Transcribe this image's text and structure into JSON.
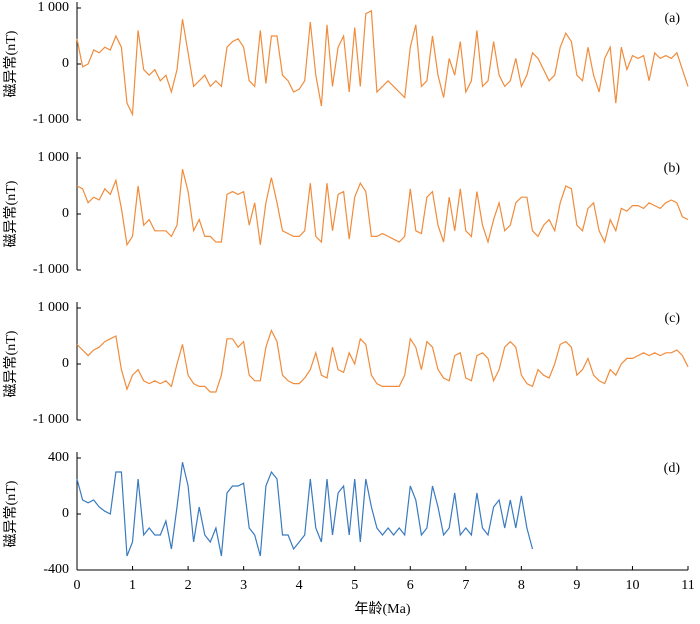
{
  "chart_data": [
    {
      "type": "line",
      "label": "(a)",
      "ylabel": "磁异常(nT)",
      "color": "#f08c3c",
      "x": [
        0,
        0.1,
        0.2,
        0.3,
        0.4,
        0.5,
        0.6,
        0.7,
        0.8,
        0.9,
        1,
        1.1,
        1.2,
        1.3,
        1.4,
        1.5,
        1.6,
        1.7,
        1.8,
        1.9,
        2,
        2.1,
        2.2,
        2.3,
        2.4,
        2.5,
        2.6,
        2.7,
        2.8,
        2.9,
        3,
        3.1,
        3.2,
        3.3,
        3.4,
        3.5,
        3.6,
        3.7,
        3.8,
        3.9,
        4,
        4.1,
        4.2,
        4.3,
        4.4,
        4.5,
        4.6,
        4.7,
        4.8,
        4.9,
        5,
        5.1,
        5.2,
        5.3,
        5.4,
        5.5,
        5.6,
        5.7,
        5.8,
        5.9,
        6,
        6.1,
        6.2,
        6.3,
        6.4,
        6.5,
        6.6,
        6.7,
        6.8,
        6.9,
        7,
        7.1,
        7.2,
        7.3,
        7.4,
        7.5,
        7.6,
        7.7,
        7.8,
        7.9,
        8,
        8.1,
        8.2,
        8.3,
        8.4,
        8.5,
        8.6,
        8.7,
        8.8,
        8.9,
        9,
        9.1,
        9.2,
        9.3,
        9.4,
        9.5,
        9.6,
        9.7,
        9.8,
        9.9,
        10,
        10.1,
        10.2,
        10.3,
        10.4,
        10.5,
        10.6,
        10.7,
        10.8,
        10.9,
        11
      ],
      "values": [
        450,
        -50,
        0,
        250,
        200,
        300,
        250,
        500,
        300,
        -700,
        -900,
        600,
        -100,
        -200,
        -100,
        -300,
        -200,
        -500,
        -100,
        800,
        200,
        -400,
        -300,
        -200,
        -400,
        -300,
        -400,
        300,
        400,
        450,
        300,
        -300,
        -400,
        600,
        -350,
        500,
        500,
        -200,
        -300,
        -500,
        -450,
        -300,
        750,
        -200,
        -750,
        700,
        -400,
        300,
        500,
        -500,
        650,
        -400,
        900,
        950,
        -500,
        -400,
        -300,
        -400,
        -500,
        -600,
        300,
        700,
        -400,
        -300,
        500,
        -200,
        -600,
        100,
        -200,
        400,
        -500,
        -300,
        600,
        -400,
        -300,
        400,
        -200,
        -400,
        -300,
        100,
        -400,
        -200,
        200,
        100,
        -100,
        -300,
        -200,
        300,
        550,
        400,
        -200,
        -300,
        300,
        -200,
        -500,
        100,
        300,
        -700,
        300,
        -100,
        150,
        100,
        150,
        -300,
        200,
        100,
        150,
        100,
        200,
        -100,
        -400
      ],
      "xlim": [
        0,
        11
      ],
      "ylim": [
        -1000,
        1000
      ],
      "yticks": [
        {
          "value": -1000,
          "label": "-1 000"
        },
        0,
        {
          "value": 1000,
          "label": "1 000"
        }
      ]
    },
    {
      "type": "line",
      "label": "(b)",
      "ylabel": "磁异常(nT)",
      "color": "#f08c3c",
      "x": [
        0,
        0.1,
        0.2,
        0.3,
        0.4,
        0.5,
        0.6,
        0.7,
        0.8,
        0.9,
        1,
        1.1,
        1.2,
        1.3,
        1.4,
        1.5,
        1.6,
        1.7,
        1.8,
        1.9,
        2,
        2.1,
        2.2,
        2.3,
        2.4,
        2.5,
        2.6,
        2.7,
        2.8,
        2.9,
        3,
        3.1,
        3.2,
        3.3,
        3.4,
        3.5,
        3.6,
        3.7,
        3.8,
        3.9,
        4,
        4.1,
        4.2,
        4.3,
        4.4,
        4.5,
        4.6,
        4.7,
        4.8,
        4.9,
        5,
        5.1,
        5.2,
        5.3,
        5.4,
        5.5,
        5.6,
        5.7,
        5.8,
        5.9,
        6,
        6.1,
        6.2,
        6.3,
        6.4,
        6.5,
        6.6,
        6.7,
        6.8,
        6.9,
        7,
        7.1,
        7.2,
        7.3,
        7.4,
        7.5,
        7.6,
        7.7,
        7.8,
        7.9,
        8,
        8.1,
        8.2,
        8.3,
        8.4,
        8.5,
        8.6,
        8.7,
        8.8,
        8.9,
        9,
        9.1,
        9.2,
        9.3,
        9.4,
        9.5,
        9.6,
        9.7,
        9.8,
        9.9,
        10,
        10.1,
        10.2,
        10.3,
        10.4,
        10.5,
        10.6,
        10.7,
        10.8,
        10.9,
        11
      ],
      "values": [
        500,
        450,
        200,
        300,
        250,
        450,
        350,
        600,
        100,
        -550,
        -400,
        500,
        -200,
        -100,
        -300,
        -300,
        -300,
        -400,
        -200,
        800,
        400,
        -300,
        -100,
        -400,
        -400,
        -500,
        -500,
        350,
        400,
        350,
        400,
        -200,
        200,
        -550,
        200,
        650,
        200,
        -300,
        -350,
        -400,
        -400,
        -300,
        550,
        -400,
        -500,
        550,
        -300,
        350,
        400,
        -450,
        300,
        550,
        400,
        -400,
        -400,
        -350,
        -400,
        -450,
        -500,
        -400,
        450,
        -300,
        -350,
        300,
        400,
        -200,
        -500,
        300,
        -300,
        450,
        -300,
        -400,
        400,
        -200,
        -500,
        -100,
        200,
        -300,
        -200,
        200,
        300,
        300,
        -300,
        -400,
        -200,
        -100,
        -300,
        200,
        500,
        450,
        -200,
        -300,
        100,
        200,
        -300,
        -500,
        -100,
        -300,
        100,
        50,
        150,
        150,
        100,
        200,
        150,
        100,
        200,
        250,
        200,
        -50,
        -100
      ],
      "xlim": [
        0,
        11
      ],
      "ylim": [
        -1000,
        1000
      ],
      "yticks": [
        {
          "value": -1000,
          "label": "-1 000"
        },
        0,
        {
          "value": 1000,
          "label": "1 000"
        }
      ]
    },
    {
      "type": "line",
      "label": "(c)",
      "ylabel": "磁异常(nT)",
      "color": "#f08c3c",
      "x": [
        0,
        0.1,
        0.2,
        0.3,
        0.4,
        0.5,
        0.6,
        0.7,
        0.8,
        0.9,
        1,
        1.1,
        1.2,
        1.3,
        1.4,
        1.5,
        1.6,
        1.7,
        1.8,
        1.9,
        2,
        2.1,
        2.2,
        2.3,
        2.4,
        2.5,
        2.6,
        2.7,
        2.8,
        2.9,
        3,
        3.1,
        3.2,
        3.3,
        3.4,
        3.5,
        3.6,
        3.7,
        3.8,
        3.9,
        4,
        4.1,
        4.2,
        4.3,
        4.4,
        4.5,
        4.6,
        4.7,
        4.8,
        4.9,
        5,
        5.1,
        5.2,
        5.3,
        5.4,
        5.5,
        5.6,
        5.7,
        5.8,
        5.9,
        6,
        6.1,
        6.2,
        6.3,
        6.4,
        6.5,
        6.6,
        6.7,
        6.8,
        6.9,
        7,
        7.1,
        7.2,
        7.3,
        7.4,
        7.5,
        7.6,
        7.7,
        7.8,
        7.9,
        8,
        8.1,
        8.2,
        8.3,
        8.4,
        8.5,
        8.6,
        8.7,
        8.8,
        8.9,
        9,
        9.1,
        9.2,
        9.3,
        9.4,
        9.5,
        9.6,
        9.7,
        9.8,
        9.9,
        10,
        10.1,
        10.2,
        10.3,
        10.4,
        10.5,
        10.6,
        10.7,
        10.8,
        10.9,
        11
      ],
      "values": [
        350,
        250,
        150,
        250,
        300,
        400,
        450,
        500,
        -100,
        -450,
        -200,
        -100,
        -300,
        -350,
        -300,
        -350,
        -300,
        -400,
        0,
        350,
        -200,
        -350,
        -400,
        -400,
        -500,
        -500,
        -200,
        450,
        450,
        300,
        400,
        -200,
        -300,
        -300,
        300,
        600,
        400,
        -200,
        -300,
        -350,
        -350,
        -250,
        -100,
        200,
        -200,
        -250,
        300,
        -100,
        -150,
        200,
        0,
        450,
        350,
        -200,
        -350,
        -400,
        -400,
        -400,
        -400,
        -200,
        450,
        300,
        -100,
        400,
        300,
        -100,
        -250,
        -300,
        150,
        200,
        -250,
        -300,
        150,
        200,
        100,
        -300,
        -100,
        300,
        400,
        300,
        -200,
        -350,
        -400,
        -100,
        -200,
        -250,
        0,
        350,
        400,
        300,
        -200,
        -100,
        100,
        -200,
        -300,
        -350,
        -100,
        -200,
        0,
        100,
        100,
        150,
        200,
        150,
        200,
        150,
        200,
        200,
        250,
        150,
        -50
      ],
      "xlim": [
        0,
        11
      ],
      "ylim": [
        -1000,
        1000
      ],
      "yticks": [
        {
          "value": -1000,
          "label": "-1 000"
        },
        0,
        {
          "value": 1000,
          "label": "1 000"
        }
      ]
    },
    {
      "type": "line",
      "label": "(d)",
      "ylabel": "磁异常(nT)",
      "xlabel": "年龄(Ma)",
      "color": "#3a7abf",
      "x": [
        0,
        0.1,
        0.2,
        0.3,
        0.4,
        0.5,
        0.6,
        0.7,
        0.8,
        0.9,
        1,
        1.1,
        1.2,
        1.3,
        1.4,
        1.5,
        1.6,
        1.7,
        1.8,
        1.9,
        2,
        2.1,
        2.2,
        2.3,
        2.4,
        2.5,
        2.6,
        2.7,
        2.8,
        2.9,
        3,
        3.1,
        3.2,
        3.3,
        3.4,
        3.5,
        3.6,
        3.7,
        3.8,
        3.9,
        4,
        4.1,
        4.2,
        4.3,
        4.4,
        4.5,
        4.6,
        4.7,
        4.8,
        4.9,
        5,
        5.1,
        5.2,
        5.3,
        5.4,
        5.5,
        5.6,
        5.7,
        5.8,
        5.9,
        6,
        6.1,
        6.2,
        6.3,
        6.4,
        6.5,
        6.6,
        6.7,
        6.8,
        6.9,
        7,
        7.1,
        7.2,
        7.3,
        7.4,
        7.5,
        7.6,
        7.7,
        7.8,
        7.9,
        8,
        8.1,
        8.2
      ],
      "values": [
        250,
        100,
        80,
        100,
        50,
        20,
        0,
        300,
        300,
        -300,
        -200,
        250,
        -150,
        -100,
        -150,
        -150,
        -50,
        -250,
        50,
        370,
        200,
        -200,
        50,
        -150,
        -200,
        -100,
        -300,
        150,
        200,
        200,
        220,
        -100,
        -150,
        -300,
        200,
        300,
        250,
        -150,
        -150,
        -250,
        -200,
        -150,
        250,
        -100,
        -200,
        250,
        -150,
        150,
        200,
        -150,
        250,
        -200,
        250,
        50,
        -100,
        -150,
        -100,
        -150,
        -100,
        -150,
        200,
        100,
        -150,
        -100,
        200,
        50,
        -150,
        -100,
        150,
        -150,
        -100,
        -150,
        150,
        -100,
        -150,
        50,
        100,
        -100,
        100,
        -100,
        130,
        -100,
        -250
      ],
      "xlim": [
        0,
        11
      ],
      "ylim": [
        -400,
        400
      ],
      "yticks": [
        -400,
        0,
        400
      ],
      "xticks": [
        0,
        1,
        2,
        3,
        4,
        5,
        6,
        7,
        8,
        9,
        10,
        11
      ]
    }
  ]
}
